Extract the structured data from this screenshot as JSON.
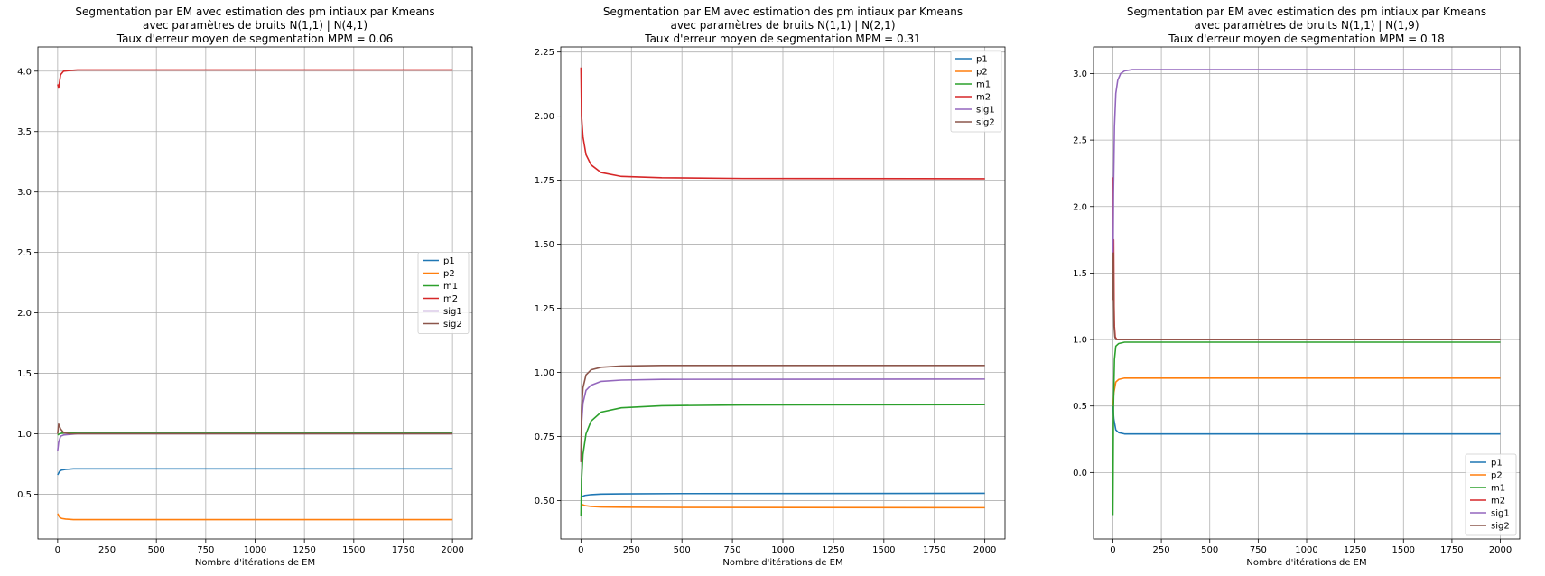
{
  "chart_data": [
    {
      "type": "line",
      "title": [
        "Segmentation par EM avec estimation des pm intiaux par Kmeans",
        "avec paramètres de bruits N(1,1) | N(4,1)",
        "Taux d'erreur moyen de segmentation MPM = 0.06"
      ],
      "xlabel": "Nombre d'itérations de EM",
      "ylabel": "",
      "xlim": [
        -100,
        2100
      ],
      "ylim": [
        0.13,
        4.2
      ],
      "xticks": [
        "0",
        "250",
        "500",
        "750",
        "1000",
        "1250",
        "1500",
        "1750",
        "2000"
      ],
      "yticks": [
        "0.5",
        "1.0",
        "1.5",
        "2.0",
        "2.5",
        "3.0",
        "3.5",
        "4.0"
      ],
      "grid": true,
      "legend_position": "center-right",
      "series": [
        {
          "name": "p1",
          "color": "#1f77b4",
          "x": [
            0,
            10,
            20,
            40,
            80,
            150,
            2000
          ],
          "y": [
            0.66,
            0.69,
            0.7,
            0.705,
            0.71,
            0.71,
            0.71
          ]
        },
        {
          "name": "p2",
          "color": "#ff7f0e",
          "x": [
            0,
            10,
            20,
            40,
            80,
            150,
            2000
          ],
          "y": [
            0.34,
            0.31,
            0.3,
            0.295,
            0.29,
            0.29,
            0.29
          ]
        },
        {
          "name": "m1",
          "color": "#2ca02c",
          "x": [
            0,
            10,
            20,
            40,
            80,
            150,
            2000
          ],
          "y": [
            0.99,
            1.0,
            1.005,
            1.008,
            1.01,
            1.01,
            1.01
          ]
        },
        {
          "name": "m2",
          "color": "#d62728",
          "x": [
            0,
            5,
            15,
            30,
            60,
            100,
            2000
          ],
          "y": [
            3.89,
            3.86,
            3.97,
            4.0,
            4.005,
            4.01,
            4.01
          ]
        },
        {
          "name": "sig1",
          "color": "#9467bd",
          "x": [
            0,
            5,
            15,
            30,
            60,
            100,
            2000
          ],
          "y": [
            0.86,
            0.93,
            0.98,
            0.99,
            0.995,
            1.0,
            1.0
          ]
        },
        {
          "name": "sig2",
          "color": "#8c564b",
          "x": [
            0,
            5,
            15,
            30,
            60,
            100,
            2000
          ],
          "y": [
            1.0,
            1.08,
            1.04,
            1.01,
            1.0,
            1.0,
            1.0
          ]
        }
      ]
    },
    {
      "type": "line",
      "title": [
        "Segmentation par EM avec estimation des pm intiaux par Kmeans",
        "avec paramètres de bruits N(1,1) | N(2,1)",
        "Taux d'erreur moyen de segmentation MPM = 0.31"
      ],
      "xlabel": "Nombre d'itérations de EM",
      "ylabel": "",
      "xlim": [
        -100,
        2100
      ],
      "ylim": [
        0.35,
        2.27
      ],
      "xticks": [
        "0",
        "250",
        "500",
        "750",
        "1000",
        "1250",
        "1500",
        "1750",
        "2000"
      ],
      "yticks": [
        "0.50",
        "0.75",
        "1.00",
        "1.25",
        "1.50",
        "1.75",
        "2.00",
        "2.25"
      ],
      "grid": true,
      "legend_position": "top-right",
      "series": [
        {
          "name": "p1",
          "color": "#1f77b4",
          "x": [
            0,
            5,
            20,
            50,
            100,
            200,
            500,
            2000
          ],
          "y": [
            0.51,
            0.515,
            0.52,
            0.523,
            0.525,
            0.526,
            0.527,
            0.528
          ]
        },
        {
          "name": "p2",
          "color": "#ff7f0e",
          "x": [
            0,
            5,
            20,
            50,
            100,
            200,
            500,
            2000
          ],
          "y": [
            0.49,
            0.485,
            0.48,
            0.477,
            0.475,
            0.474,
            0.473,
            0.472
          ]
        },
        {
          "name": "m1",
          "color": "#2ca02c",
          "x": [
            0,
            3,
            10,
            25,
            50,
            100,
            200,
            400,
            800,
            2000
          ],
          "y": [
            0.44,
            0.58,
            0.68,
            0.76,
            0.81,
            0.845,
            0.862,
            0.87,
            0.873,
            0.874
          ]
        },
        {
          "name": "m2",
          "color": "#d62728",
          "x": [
            0,
            3,
            10,
            25,
            50,
            100,
            200,
            400,
            800,
            2000
          ],
          "y": [
            2.19,
            2.0,
            1.92,
            1.85,
            1.81,
            1.78,
            1.765,
            1.76,
            1.757,
            1.756
          ]
        },
        {
          "name": "sig1",
          "color": "#9467bd",
          "x": [
            0,
            3,
            10,
            25,
            50,
            100,
            200,
            400,
            2000
          ],
          "y": [
            0.66,
            0.8,
            0.88,
            0.93,
            0.95,
            0.965,
            0.97,
            0.973,
            0.974
          ]
        },
        {
          "name": "sig2",
          "color": "#8c564b",
          "x": [
            0,
            3,
            10,
            25,
            50,
            100,
            200,
            400,
            2000
          ],
          "y": [
            0.65,
            0.85,
            0.94,
            0.99,
            1.01,
            1.02,
            1.025,
            1.027,
            1.027
          ]
        }
      ]
    },
    {
      "type": "line",
      "title": [
        "Segmentation par EM avec estimation des pm intiaux par Kmeans",
        "avec paramètres de bruits N(1,1) | N(1,9)",
        "Taux d'erreur moyen de segmentation MPM = 0.18"
      ],
      "xlabel": "Nombre d'itérations de EM",
      "ylabel": "",
      "xlim": [
        -100,
        2100
      ],
      "ylim": [
        -0.5,
        3.2
      ],
      "xticks": [
        "0",
        "250",
        "500",
        "750",
        "1000",
        "1250",
        "1500",
        "1750",
        "2000"
      ],
      "yticks": [
        "0.0",
        "0.5",
        "1.0",
        "1.5",
        "2.0",
        "2.5",
        "3.0"
      ],
      "grid": true,
      "legend_position": "bottom-right",
      "series": [
        {
          "name": "p1",
          "color": "#1f77b4",
          "x": [
            0,
            5,
            15,
            30,
            60,
            100,
            2000
          ],
          "y": [
            0.5,
            0.4,
            0.32,
            0.3,
            0.29,
            0.29,
            0.29
          ]
        },
        {
          "name": "p2",
          "color": "#ff7f0e",
          "x": [
            0,
            5,
            15,
            30,
            60,
            100,
            2000
          ],
          "y": [
            0.5,
            0.6,
            0.68,
            0.7,
            0.71,
            0.71,
            0.71
          ]
        },
        {
          "name": "m1",
          "color": "#2ca02c",
          "x": [
            0,
            3,
            8,
            15,
            30,
            60,
            2000
          ],
          "y": [
            -0.32,
            0.5,
            0.85,
            0.95,
            0.97,
            0.98,
            0.98
          ]
        },
        {
          "name": "m2",
          "color": "#d62728",
          "x": [
            0,
            2,
            4,
            6,
            8,
            12,
            20,
            40,
            2000
          ],
          "y": [
            2.22,
            1.3,
            1.75,
            1.25,
            1.1,
            1.02,
            1.0,
            1.0,
            1.0
          ]
        },
        {
          "name": "sig1",
          "color": "#9467bd",
          "x": [
            0,
            3,
            8,
            15,
            25,
            40,
            60,
            100,
            2000
          ],
          "y": [
            1.35,
            2.1,
            2.6,
            2.85,
            2.95,
            3.0,
            3.02,
            3.03,
            3.03
          ]
        },
        {
          "name": "sig2",
          "color": "#8c564b",
          "x": [
            0,
            2,
            4,
            6,
            10,
            15,
            30,
            2000
          ],
          "y": [
            1.3,
            1.65,
            1.3,
            1.1,
            1.02,
            1.0,
            1.0,
            1.0
          ]
        }
      ]
    }
  ]
}
